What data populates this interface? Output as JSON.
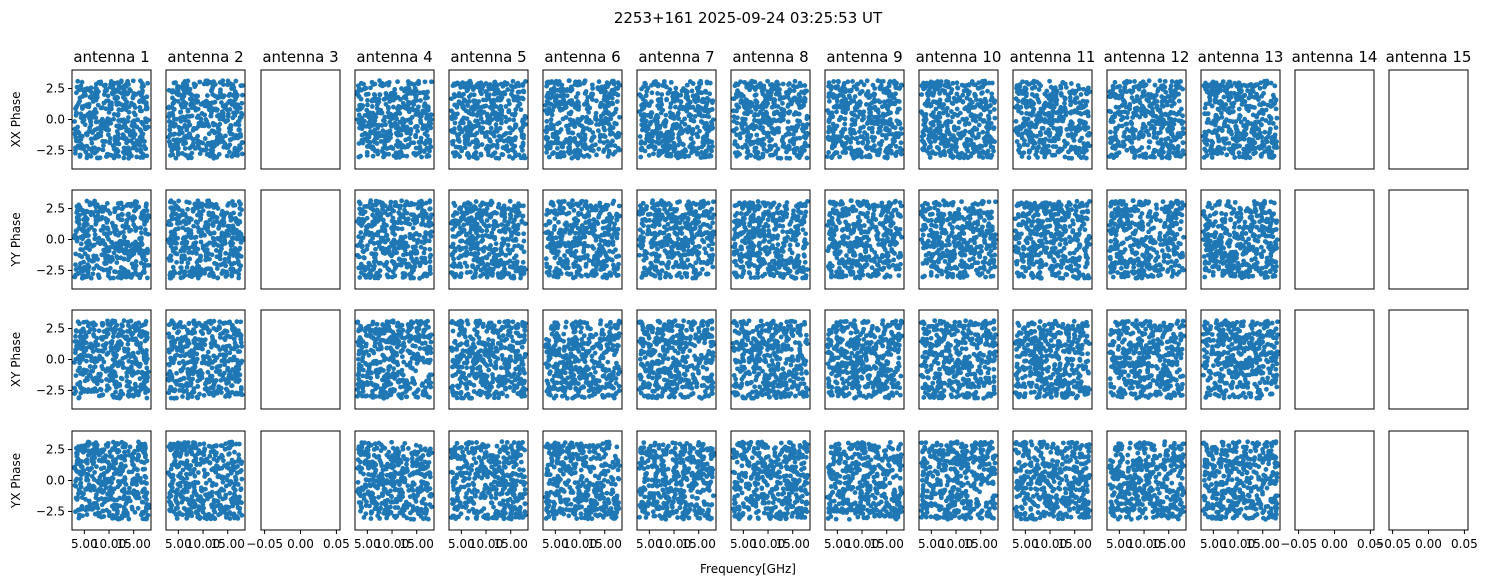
{
  "chart_data": {
    "type": "scatter",
    "title": "2253+161 2025-09-24 03:25:53 UT",
    "xlabel": "Frequency[GHz]",
    "row_labels": [
      "XX Phase",
      "YY Phase",
      "XY Phase",
      "YX Phase"
    ],
    "antennas": [
      "antenna 1",
      "antenna 2",
      "antenna 3",
      "antenna 4",
      "antenna 5",
      "antenna 6",
      "antenna 7",
      "antenna 8",
      "antenna 9",
      "antenna 10",
      "antenna 11",
      "antenna 12",
      "antenna 13",
      "antenna 14",
      "antenna 15"
    ],
    "empty_antennas": [
      "antenna 3",
      "antenna 14",
      "antenna 15"
    ],
    "xlim": [
      2.5,
      18.5
    ],
    "ylim": [
      -4.0,
      4.0
    ],
    "yticks": [
      -2.5,
      0.0,
      2.5
    ],
    "ytick_labels": [
      "−2.5",
      "0.0",
      "2.5"
    ],
    "xticks": [
      5.0,
      10.0,
      15.0
    ],
    "xtick_labels": [
      "5.00",
      "10.00",
      "15.00"
    ],
    "empty_xlim": [
      -0.055,
      0.055
    ],
    "empty_xticks": [
      -0.05,
      0.0,
      0.05
    ],
    "empty_xtick_labels": [
      "−0.05",
      "0.00",
      "0.05"
    ],
    "point_color": "#1f77b4",
    "point_description": "Each populated panel shows roughly 400 phase samples uniformly scattered between -3.14 and 3.14 rad across the 3–18 GHz band."
  }
}
